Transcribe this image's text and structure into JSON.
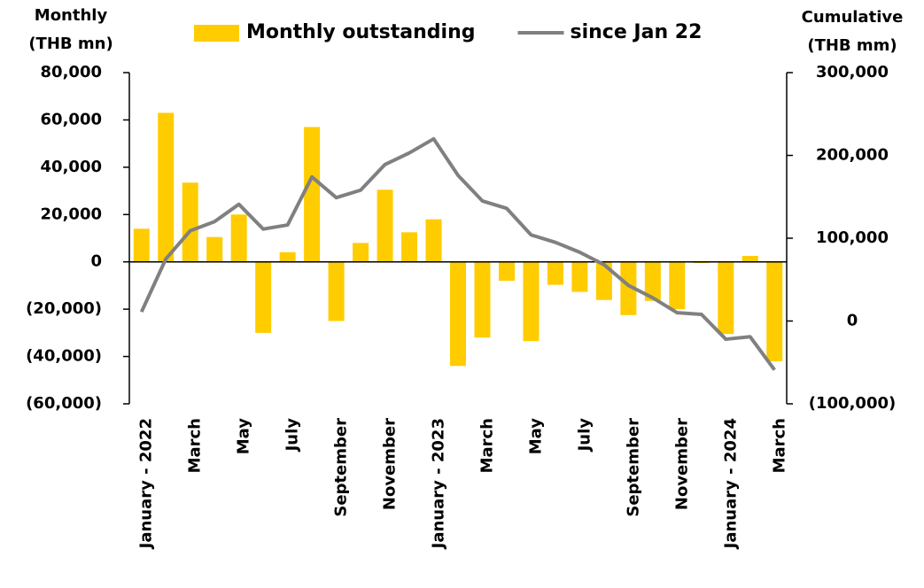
{
  "chart_data": {
    "type": "bar",
    "ylabel": [
      "Monthly",
      "(THB mn)"
    ],
    "y2label": [
      "Cumulative",
      "(THB mm)"
    ],
    "categories": [
      "January - 2022",
      null,
      "March",
      null,
      "May",
      null,
      "July",
      null,
      "September",
      null,
      "November",
      null,
      "January - 2023",
      null,
      "March",
      null,
      "May",
      null,
      "July",
      null,
      "September",
      null,
      "November",
      null,
      "January - 2024",
      null,
      "March"
    ],
    "series": [
      {
        "name": "Monthly outstanding",
        "type": "bar",
        "color": "#ffcc00",
        "axis": "y",
        "values": [
          14000,
          63000,
          33500,
          10500,
          20000,
          -30000,
          4100,
          57000,
          -25000,
          8000,
          30500,
          12500,
          18000,
          -44000,
          -32000,
          -8000,
          -33500,
          -9700,
          -12700,
          -16100,
          -22500,
          -16500,
          -20000,
          -500,
          -30500,
          2500,
          -42000
        ]
      },
      {
        "name": "since Jan 22",
        "type": "line",
        "color": "#808080",
        "axis": "y2",
        "values": [
          11000,
          75000,
          109000,
          120000,
          141000,
          111000,
          116000,
          174000,
          149000,
          158000,
          189000,
          203000,
          220000,
          176000,
          145000,
          136000,
          104000,
          95000,
          83000,
          68000,
          43000,
          28000,
          10000,
          8000,
          -22000,
          -19000,
          -59000
        ]
      }
    ],
    "ylim": [
      -60000,
      80000
    ],
    "yticks": [
      {
        "value": -60000,
        "label": "(60,000)"
      },
      {
        "value": -40000,
        "label": "(40,000)"
      },
      {
        "value": -20000,
        "label": "(20,000)"
      },
      0,
      {
        "value": 20000,
        "label": "20,000"
      },
      {
        "value": 40000,
        "label": "40,000"
      },
      {
        "value": 60000,
        "label": "60,000"
      },
      {
        "value": 80000,
        "label": "80,000"
      }
    ],
    "y2lim": [
      -100000,
      300000
    ],
    "y2ticks": [
      {
        "value": -100000,
        "label": "(100,000)"
      },
      0,
      {
        "value": 100000,
        "label": "100,000"
      },
      {
        "value": 200000,
        "label": "200,000"
      },
      {
        "value": 300000,
        "label": "300,000"
      }
    ],
    "legend": "top",
    "grid": false
  }
}
